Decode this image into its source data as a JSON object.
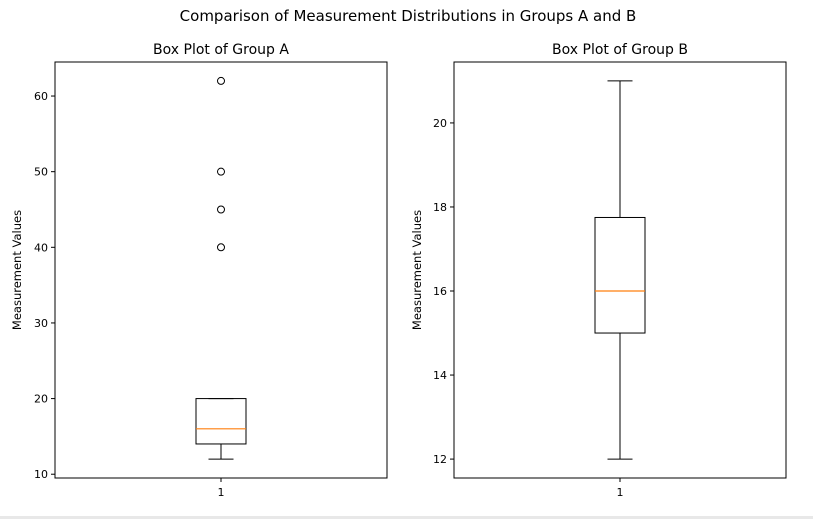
{
  "figure": {
    "suptitle": "Comparison of Measurement Distributions in Groups A and B"
  },
  "chart_data": [
    {
      "type": "box",
      "title": "Box Plot of Group A",
      "xlabel": "",
      "ylabel": "Measurement Values",
      "categories": [
        "1"
      ],
      "ylim": [
        9.5,
        64.5
      ],
      "yticks": [
        10,
        20,
        30,
        40,
        50,
        60
      ],
      "box": {
        "whisker_low": 12,
        "q1": 14,
        "median": 16,
        "q3": 20,
        "whisker_high": 20,
        "outliers": [
          40,
          45,
          50,
          62
        ]
      },
      "colors": {
        "median": "#ff7f0e",
        "box": "#000000"
      }
    },
    {
      "type": "box",
      "title": "Box Plot of Group B",
      "xlabel": "",
      "ylabel": "Measurement Values",
      "categories": [
        "1"
      ],
      "ylim": [
        11.55,
        21.45
      ],
      "yticks": [
        12,
        14,
        16,
        18,
        20
      ],
      "box": {
        "whisker_low": 12,
        "q1": 15,
        "median": 16,
        "q3": 17.75,
        "whisker_high": 21,
        "outliers": []
      },
      "colors": {
        "median": "#ff7f0e",
        "box": "#000000"
      }
    }
  ]
}
